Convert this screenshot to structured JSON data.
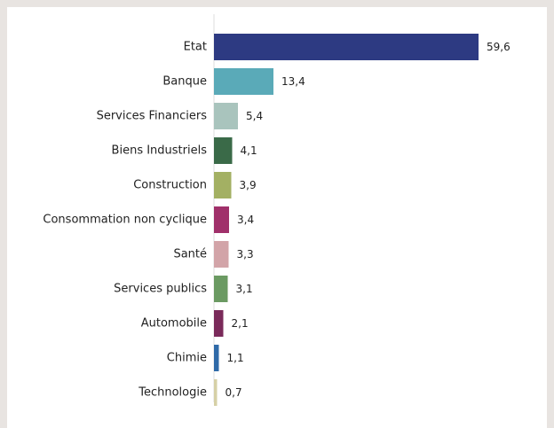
{
  "chart_data": {
    "type": "bar",
    "orientation": "horizontal",
    "categories": [
      "Etat",
      "Banque",
      "Services Financiers",
      "Biens Industriels",
      "Construction",
      "Consommation non cyclique",
      "Santé",
      "Services publics",
      "Automobile",
      "Chimie",
      "Technologie"
    ],
    "values": [
      59.6,
      13.4,
      5.4,
      4.1,
      3.9,
      3.4,
      3.3,
      3.1,
      2.1,
      1.1,
      0.7
    ],
    "value_labels": [
      "59,6",
      "13,4",
      "5,4",
      "4,1",
      "3,9",
      "3,4",
      "3,3",
      "3,1",
      "2,1",
      "1,1",
      "0,7"
    ],
    "colors": [
      "#2d3a82",
      "#5aaab8",
      "#a9c4bd",
      "#3a6a48",
      "#a3b063",
      "#a0306a",
      "#d2a4a8",
      "#6b9a62",
      "#7a2a5a",
      "#2f6aa8",
      "#d6d0a6"
    ],
    "axis_color": "#dddddd",
    "title": "",
    "xlabel": "",
    "ylabel": "",
    "grid": false,
    "legend": "none"
  }
}
